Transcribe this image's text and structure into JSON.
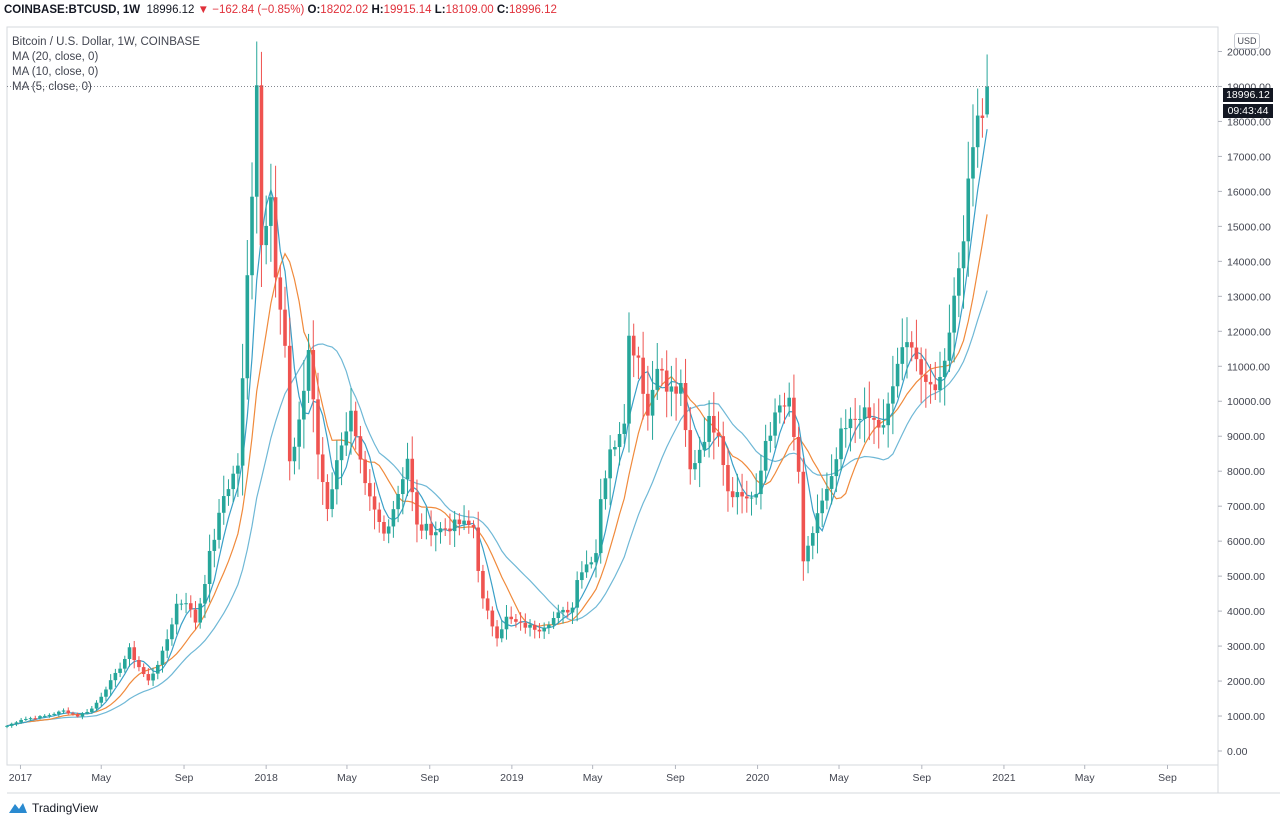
{
  "header": {
    "symbol": "COINBASE:BTCUSD, 1W",
    "last": "18996.12",
    "change": "▼ −162.84 (−0.85%)",
    "o_label": "O:",
    "o_value": "18202.02",
    "h_label": "H:",
    "h_value": "19915.14",
    "l_label": "L:",
    "l_value": "18109.00",
    "c_label": "C:",
    "c_value": "18996.12"
  },
  "legend": {
    "title": "Bitcoin / U.S. Dollar, 1W, COINBASE",
    "ma20": "MA (20, close, 0)",
    "ma10": "MA (10, close, 0)",
    "ma5": "MA (5, close, 0)"
  },
  "currency_button": "USD",
  "price_tag": {
    "price": "18996.12",
    "countdown": "09:43:44"
  },
  "brand": "TradingView",
  "colors": {
    "up": "#26a69a",
    "down": "#ef5350",
    "ma20": "#6fb8d6",
    "ma10": "#f08a3c",
    "ma5": "#3aa0c8"
  },
  "chart_data": {
    "type": "candlestick",
    "interval": "1W",
    "ylim": [
      -400,
      20700
    ],
    "y_ticks": [
      0,
      1000,
      2000,
      3000,
      4000,
      5000,
      6000,
      7000,
      8000,
      9000,
      10000,
      11000,
      12000,
      13000,
      14000,
      15000,
      16000,
      17000,
      18000,
      19000,
      20000
    ],
    "y_tick_labels": [
      "0.00",
      "1000.00",
      "2000.00",
      "3000.00",
      "4000.00",
      "5000.00",
      "6000.00",
      "7000.00",
      "8000.00",
      "9000.00",
      "10000.00",
      "11000.00",
      "12000.00",
      "13000.00",
      "14000.00",
      "15000.00",
      "16000.00",
      "17000.00",
      "18000.00",
      "19000.00",
      "20000.00"
    ],
    "x_range": [
      "2016-12-12",
      "2021-11-15"
    ],
    "x_ticks": [
      {
        "date": "2017-01-01",
        "label": "2017"
      },
      {
        "date": "2017-05-01",
        "label": "May"
      },
      {
        "date": "2017-09-01",
        "label": "Sep"
      },
      {
        "date": "2018-01-01",
        "label": "2018"
      },
      {
        "date": "2018-05-01",
        "label": "May"
      },
      {
        "date": "2018-09-01",
        "label": "Sep"
      },
      {
        "date": "2019-01-01",
        "label": "2019"
      },
      {
        "date": "2019-05-01",
        "label": "May"
      },
      {
        "date": "2019-09-01",
        "label": "Sep"
      },
      {
        "date": "2020-01-01",
        "label": "2020"
      },
      {
        "date": "2020-05-01",
        "label": "May"
      },
      {
        "date": "2020-09-01",
        "label": "Sep"
      },
      {
        "date": "2021-01-01",
        "label": "2021"
      },
      {
        "date": "2021-05-01",
        "label": "May"
      },
      {
        "date": "2021-09-01",
        "label": "Sep"
      }
    ],
    "last_price": 18996.12,
    "close_anchors": [
      [
        "2016-12-12",
        720
      ],
      [
        "2017-01-02",
        900
      ],
      [
        "2017-02-06",
        1000
      ],
      [
        "2017-03-06",
        1150
      ],
      [
        "2017-03-27",
        1000
      ],
      [
        "2017-04-17",
        1210
      ],
      [
        "2017-05-08",
        1800
      ],
      [
        "2017-05-29",
        2400
      ],
      [
        "2017-06-12",
        2900
      ],
      [
        "2017-07-10",
        2000
      ],
      [
        "2017-07-31",
        2800
      ],
      [
        "2017-08-21",
        4200
      ],
      [
        "2017-09-04",
        4300
      ],
      [
        "2017-09-18",
        3700
      ],
      [
        "2017-10-09",
        5600
      ],
      [
        "2017-10-30",
        7300
      ],
      [
        "2017-11-20",
        8200
      ],
      [
        "2017-12-04",
        13500
      ],
      [
        "2017-12-18",
        19300
      ],
      [
        "2017-12-25",
        14500
      ],
      [
        "2018-01-08",
        16200
      ],
      [
        "2018-01-15",
        13600
      ],
      [
        "2018-01-29",
        11500
      ],
      [
        "2018-02-05",
        8100
      ],
      [
        "2018-02-26",
        10300
      ],
      [
        "2018-03-05",
        11500
      ],
      [
        "2018-03-19",
        8500
      ],
      [
        "2018-04-02",
        7000
      ],
      [
        "2018-04-23",
        8900
      ],
      [
        "2018-05-07",
        9600
      ],
      [
        "2018-05-28",
        7500
      ],
      [
        "2018-06-25",
        6200
      ],
      [
        "2018-07-16",
        7400
      ],
      [
        "2018-07-30",
        8400
      ],
      [
        "2018-08-13",
        6400
      ],
      [
        "2018-09-10",
        6300
      ],
      [
        "2018-10-15",
        6500
      ],
      [
        "2018-11-05",
        6400
      ],
      [
        "2018-11-19",
        4300
      ],
      [
        "2018-12-10",
        3300
      ],
      [
        "2018-12-24",
        3800
      ],
      [
        "2019-01-14",
        3600
      ],
      [
        "2019-02-11",
        3500
      ],
      [
        "2019-03-11",
        3900
      ],
      [
        "2019-04-01",
        4100
      ],
      [
        "2019-04-08",
        5000
      ],
      [
        "2019-05-06",
        5700
      ],
      [
        "2019-05-13",
        7300
      ],
      [
        "2019-05-27",
        8500
      ],
      [
        "2019-06-17",
        9600
      ],
      [
        "2019-06-24",
        11800
      ],
      [
        "2019-07-08",
        11300
      ],
      [
        "2019-07-22",
        9600
      ],
      [
        "2019-08-05",
        11200
      ],
      [
        "2019-08-19",
        10300
      ],
      [
        "2019-09-09",
        10300
      ],
      [
        "2019-09-23",
        8000
      ],
      [
        "2019-10-21",
        9400
      ],
      [
        "2019-11-04",
        9200
      ],
      [
        "2019-11-18",
        7500
      ],
      [
        "2019-12-09",
        7300
      ],
      [
        "2019-12-30",
        7200
      ],
      [
        "2020-01-13",
        8900
      ],
      [
        "2020-02-03",
        9800
      ],
      [
        "2020-02-17",
        9900
      ],
      [
        "2020-03-02",
        8000
      ],
      [
        "2020-03-09",
        5300
      ],
      [
        "2020-03-30",
        6800
      ],
      [
        "2020-04-20",
        7700
      ],
      [
        "2020-05-04",
        9000
      ],
      [
        "2020-06-01",
        9700
      ],
      [
        "2020-07-06",
        9200
      ],
      [
        "2020-07-27",
        11100
      ],
      [
        "2020-08-17",
        11800
      ],
      [
        "2020-09-07",
        10300
      ],
      [
        "2020-09-28",
        10600
      ],
      [
        "2020-10-19",
        13000
      ],
      [
        "2020-11-09",
        16000
      ],
      [
        "2020-11-23",
        18600
      ],
      [
        "2020-11-30",
        18200
      ],
      [
        "2020-12-07",
        18996
      ]
    ]
  }
}
